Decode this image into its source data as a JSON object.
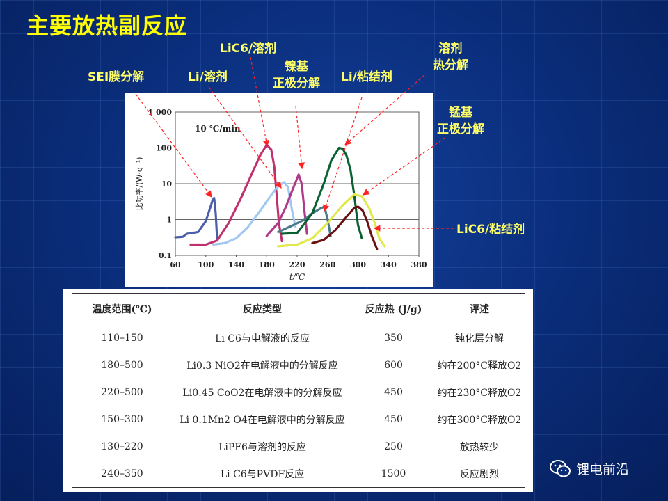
{
  "slide": {
    "title": "主要放热副反应",
    "watermark": "锂电前沿"
  },
  "callouts": {
    "sei": "SEI膜分解",
    "li_solvent": "Li/溶剂",
    "lic6_solvent": "LiC6/溶剂",
    "ni_cathode": "镍基\n正极分解",
    "li_binder": "Li/粘结剂",
    "solvent_decomp": "溶剂\n热分解",
    "mn_cathode": "锰基\n正极分解",
    "lic6_binder": "LiC6/粘结剂"
  },
  "chart_data": {
    "type": "line",
    "title": "10 ℃/min",
    "xlabel": "t/℃",
    "ylabel": "比功率/(W·g⁻¹)",
    "xlim": [
      60,
      380
    ],
    "ylim": [
      0.1,
      1000
    ],
    "yscale": "log",
    "xticks": [
      60,
      100,
      140,
      180,
      220,
      260,
      300,
      340,
      380
    ],
    "yticks": [
      "0.1",
      "1",
      "10",
      "100",
      "1 000"
    ],
    "grid": "horizontal",
    "series": [
      {
        "color": "#4a5fa8",
        "x": [
          60,
          70,
          75,
          82,
          90,
          100,
          106,
          109,
          111,
          113,
          115
        ],
        "y": [
          0.32,
          0.33,
          0.4,
          0.42,
          0.45,
          0.9,
          2.2,
          3.5,
          4,
          1.5,
          0.25
        ]
      },
      {
        "color": "#c0306e",
        "x": [
          80,
          100,
          115,
          130,
          145,
          160,
          172,
          180,
          186,
          190,
          193,
          196,
          200
        ],
        "y": [
          0.2,
          0.2,
          0.26,
          0.8,
          3.5,
          18,
          65,
          120,
          90,
          30,
          5,
          0.8,
          0.25
        ]
      },
      {
        "color": "#a0c8f0",
        "x": [
          110,
          125,
          140,
          155,
          170,
          185,
          195,
          203,
          208,
          213,
          218
        ],
        "y": [
          0.2,
          0.22,
          0.3,
          0.6,
          1.6,
          4.5,
          8.5,
          11,
          8,
          2,
          0.6
        ]
      },
      {
        "color": "#b03a8a",
        "x": [
          180,
          195,
          205,
          213,
          218,
          222,
          226,
          230,
          233
        ],
        "y": [
          0.35,
          0.8,
          2.2,
          6,
          11,
          18,
          10,
          1.5,
          0.4
        ]
      },
      {
        "color": "#4a7a8a",
        "x": [
          195,
          215,
          230,
          240,
          250,
          256,
          260,
          264
        ],
        "y": [
          0.45,
          0.7,
          1,
          1.5,
          2,
          2.3,
          1,
          0.35
        ]
      },
      {
        "color": "#0a6030",
        "x": [
          200,
          220,
          240,
          255,
          265,
          275,
          280,
          285,
          290,
          295,
          298,
          300,
          305
        ],
        "y": [
          0.4,
          0.42,
          1.5,
          10,
          45,
          100,
          95,
          60,
          25,
          5,
          1.5,
          0.7,
          0.3
        ]
      },
      {
        "color": "#e0e84a",
        "x": [
          195,
          220,
          240,
          260,
          280,
          295,
          305,
          315,
          322,
          328,
          335
        ],
        "y": [
          0.18,
          0.2,
          0.3,
          0.8,
          2.5,
          5,
          4.5,
          2,
          0.8,
          0.3,
          0.18
        ]
      },
      {
        "color": "#6b1010",
        "x": [
          240,
          255,
          270,
          285,
          295,
          300,
          306,
          312,
          318,
          325
        ],
        "y": [
          0.22,
          0.27,
          0.5,
          1.2,
          2.1,
          2.3,
          1.8,
          0.9,
          0.35,
          0.15
        ]
      }
    ]
  },
  "table": {
    "headers": [
      "温度范围(℃)",
      "反应类型",
      "反应热 (J/g)",
      "评述"
    ],
    "rows": [
      [
        "110–150",
        "Li C6与电解液的反应",
        "350",
        "钝化层分解"
      ],
      [
        "180–500",
        "Li0.3 NiO2在电解液中的分解反应",
        "600",
        "约在200°C释放O2"
      ],
      [
        "220–500",
        "Li0.45 CoO2在电解液中的分解反应",
        "450",
        "约在230°C释放O2"
      ],
      [
        "150–300",
        "Li 0.1Mn2 O4在电解液中的分解反应",
        "450",
        "约在300°C释放O2"
      ],
      [
        "130–220",
        "LiPF6与溶剂的反应",
        "250",
        "放热较少"
      ],
      [
        "240–350",
        "Li C6与PVDF反应",
        "1500",
        "反应剧烈"
      ]
    ]
  }
}
